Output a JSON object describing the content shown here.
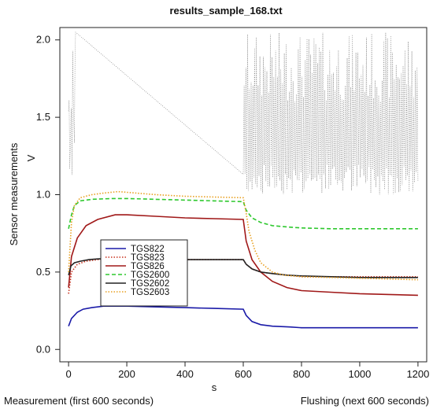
{
  "chart_data": {
    "type": "line",
    "title": "results_sample_168.txt",
    "xlabel": "s",
    "ylabel": "Sensor measurements",
    "y_unit": "V",
    "footer_left": "Measurement (first 600 seconds)",
    "footer_right": "Flushing (next 600 seconds)",
    "xlim": [
      -30,
      1230
    ],
    "ylim": [
      -0.08,
      2.08
    ],
    "x_ticks": [
      0,
      200,
      400,
      600,
      800,
      1000,
      1200
    ],
    "y_ticks": [
      0.0,
      0.5,
      1.0,
      1.5,
      2.0
    ],
    "x_tick_labels": [
      "0",
      "200",
      "400",
      "600",
      "800",
      "1000",
      "1200"
    ],
    "y_tick_labels": [
      "0.0",
      "0.5",
      "1.0",
      "1.5",
      "2.0"
    ],
    "grid": false,
    "legend_position": "center-left",
    "series": [
      {
        "name": "TGS822",
        "color": "#1a1aa8",
        "dash": "solid",
        "x": [
          0,
          10,
          30,
          50,
          80,
          120,
          200,
          300,
          400,
          500,
          600,
          610,
          630,
          660,
          700,
          760,
          800,
          900,
          1000,
          1100,
          1200
        ],
        "y": [
          0.15,
          0.2,
          0.24,
          0.26,
          0.27,
          0.28,
          0.28,
          0.275,
          0.27,
          0.265,
          0.26,
          0.22,
          0.18,
          0.16,
          0.15,
          0.145,
          0.14,
          0.14,
          0.14,
          0.14,
          0.14
        ]
      },
      {
        "name": "TGS823",
        "color": "#c8321e",
        "dash": "dotted",
        "x": [
          0,
          10,
          30,
          60,
          100,
          200,
          300,
          400,
          500,
          600,
          610,
          630,
          660,
          700,
          750,
          800,
          900,
          1000,
          1100,
          1200
        ],
        "y": [
          0.36,
          0.5,
          0.55,
          0.57,
          0.58,
          0.59,
          0.585,
          0.58,
          0.58,
          0.58,
          0.55,
          0.52,
          0.5,
          0.49,
          0.48,
          0.47,
          0.47,
          0.47,
          0.47,
          0.47
        ]
      },
      {
        "name": "TGS826",
        "color": "#a01818",
        "dash": "solid",
        "x": [
          0,
          10,
          30,
          60,
          100,
          160,
          200,
          300,
          400,
          500,
          600,
          610,
          630,
          660,
          700,
          750,
          800,
          900,
          1000,
          1100,
          1200
        ],
        "y": [
          0.4,
          0.6,
          0.72,
          0.8,
          0.84,
          0.87,
          0.87,
          0.86,
          0.85,
          0.845,
          0.84,
          0.7,
          0.58,
          0.5,
          0.44,
          0.4,
          0.38,
          0.37,
          0.36,
          0.355,
          0.35
        ]
      },
      {
        "name": "TGS2600",
        "color": "#2ec82e",
        "dash": "dashed",
        "x": [
          0,
          10,
          20,
          40,
          80,
          150,
          200,
          300,
          400,
          500,
          600,
          610,
          630,
          660,
          700,
          760,
          800,
          900,
          1000,
          1100,
          1200
        ],
        "y": [
          0.78,
          0.87,
          0.93,
          0.96,
          0.97,
          0.975,
          0.975,
          0.97,
          0.965,
          0.96,
          0.955,
          0.9,
          0.85,
          0.82,
          0.8,
          0.79,
          0.785,
          0.78,
          0.78,
          0.78,
          0.78
        ]
      },
      {
        "name": "TGS2602",
        "color": "#222222",
        "dash": "solid",
        "x": [
          0,
          8,
          20,
          40,
          70,
          100,
          200,
          300,
          400,
          500,
          600,
          610,
          630,
          660,
          700,
          750,
          800,
          900,
          1000,
          1100,
          1200
        ],
        "y": [
          0.48,
          0.54,
          0.56,
          0.57,
          0.58,
          0.585,
          0.59,
          0.585,
          0.58,
          0.58,
          0.58,
          0.55,
          0.52,
          0.5,
          0.49,
          0.48,
          0.475,
          0.47,
          0.465,
          0.465,
          0.465
        ]
      },
      {
        "name": "TGS2603",
        "color": "#e8a020",
        "dash": "dotted",
        "x": [
          0,
          10,
          20,
          40,
          80,
          120,
          170,
          200,
          300,
          400,
          500,
          600,
          610,
          620,
          640,
          660,
          700,
          740,
          800,
          900,
          1000,
          1100,
          1200
        ],
        "y": [
          0.5,
          0.82,
          0.93,
          0.98,
          1.0,
          1.01,
          1.02,
          1.015,
          1.0,
          0.99,
          0.985,
          0.98,
          0.88,
          0.76,
          0.64,
          0.56,
          0.5,
          0.48,
          0.47,
          0.465,
          0.46,
          0.455,
          0.45
        ]
      }
    ]
  }
}
